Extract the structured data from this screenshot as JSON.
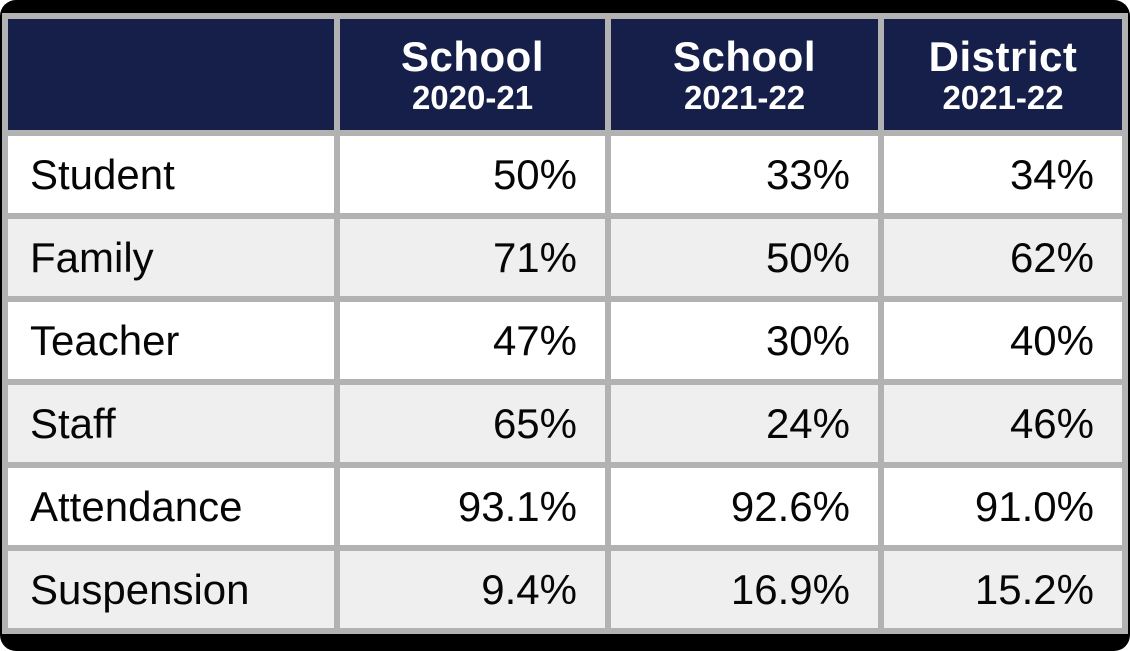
{
  "chart_data": {
    "type": "table",
    "columns": [
      {
        "line1": "",
        "line2": ""
      },
      {
        "line1": "School",
        "line2": "2020-21"
      },
      {
        "line1": "School",
        "line2": "2021-22"
      },
      {
        "line1": "District",
        "line2": "2021-22"
      }
    ],
    "rows": [
      {
        "label": "Student",
        "values": [
          "50%",
          "33%",
          "34%"
        ]
      },
      {
        "label": "Family",
        "values": [
          "71%",
          "50%",
          "62%"
        ]
      },
      {
        "label": "Teacher",
        "values": [
          "47%",
          "30%",
          "40%"
        ]
      },
      {
        "label": "Staff",
        "values": [
          "65%",
          "24%",
          "46%"
        ]
      },
      {
        "label": "Attendance",
        "values": [
          "93.1%",
          "92.6%",
          "91.0%"
        ]
      },
      {
        "label": "Suspension",
        "values": [
          "9.4%",
          "16.9%",
          "15.2%"
        ]
      }
    ],
    "layout": {
      "grid": "on",
      "alternating_rows": true
    }
  },
  "colors": {
    "header_bg": "#161f49",
    "header_text": "#ffffff",
    "gridline": "#b2b2b2",
    "row_white": "#ffffff",
    "row_alt": "#efefef",
    "frame": "#000000",
    "body_text": "#060606"
  }
}
